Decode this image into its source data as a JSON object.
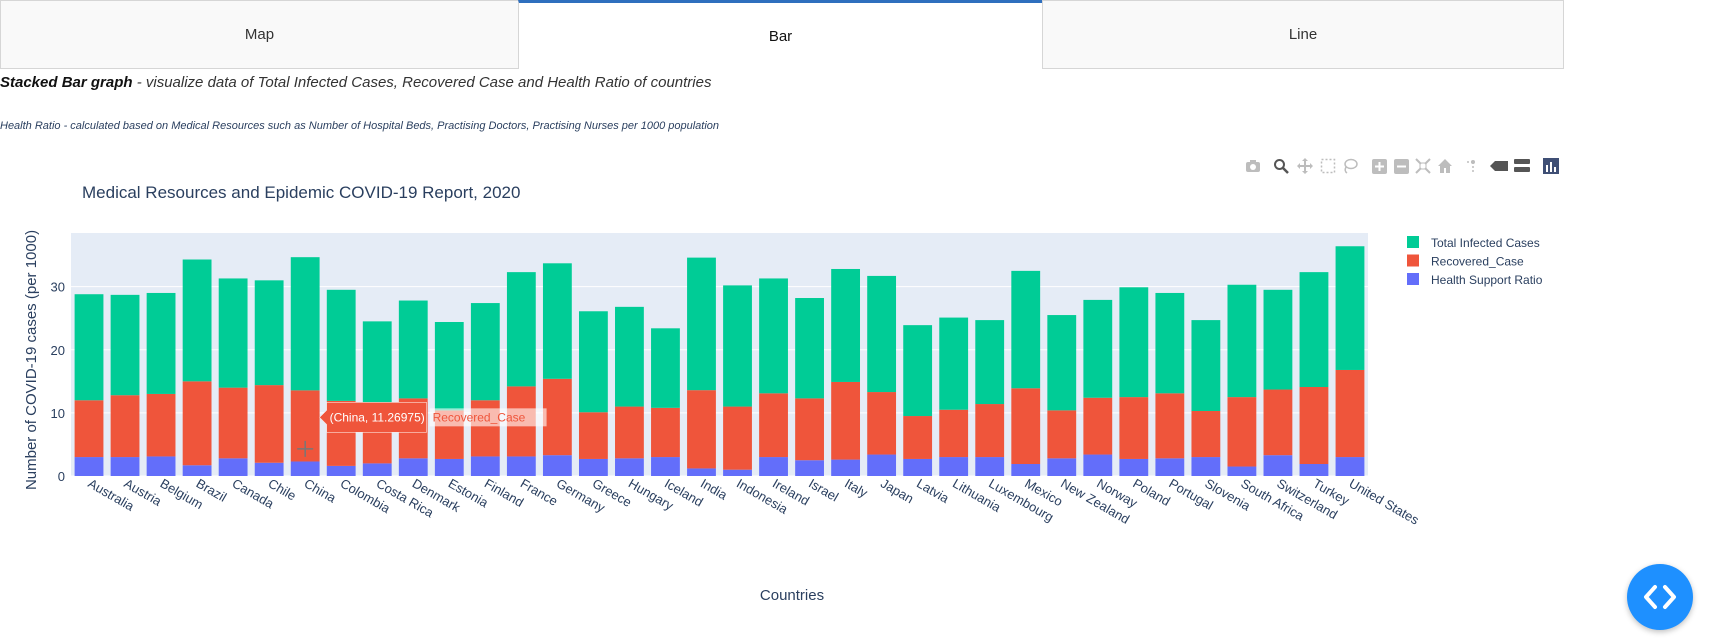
{
  "tabs": [
    {
      "label": "Map",
      "active": false
    },
    {
      "label": "Bar",
      "active": true
    },
    {
      "label": "Line",
      "active": false
    }
  ],
  "description": {
    "bold": "Stacked Bar graph",
    "rest": " - visualize data of Total Infected Cases, Recovered Case and Health Ratio of countries",
    "note": "Health Ratio - calculated based on Medical Resources such as Number of Hospital Beds, Practising Doctors, Practising Nurses per 1000 population"
  },
  "modebar_icons": [
    "camera-icon",
    "zoom-icon",
    "pan-icon",
    "box-select-icon",
    "lasso-select-icon",
    "zoom-in-icon",
    "zoom-out-icon",
    "autoscale-icon",
    "reset-axes-icon",
    "spike-lines-icon",
    "hover-closest-icon",
    "hover-compare-icon",
    "plotly-logo-icon"
  ],
  "colors": {
    "total": "#00cc96",
    "recovered": "#ef553b",
    "health": "#636efa",
    "plot_bg": "#e5ecf6",
    "tab_accent": "#2e6fbe",
    "fab": "#1e90ff"
  },
  "chart_data": {
    "type": "bar",
    "barmode": "stack",
    "title": "Medical Resources and Epidemic COVID-19 Report, 2020",
    "xlabel": "Countries",
    "ylabel": "Number of COVID-19 cases (per 1000)",
    "ylim": [
      0,
      38.5
    ],
    "yticks": [
      0,
      10,
      20,
      30
    ],
    "grid": true,
    "legend_position": "top-right",
    "categories": [
      "Australia",
      "Austria",
      "Belgium",
      "Brazil",
      "Canada",
      "Chile",
      "China",
      "Colombia",
      "Costa Rica",
      "Denmark",
      "Estonia",
      "Finland",
      "France",
      "Germany",
      "Greece",
      "Hungary",
      "Iceland",
      "India",
      "Indonesia",
      "Ireland",
      "Israel",
      "Italy",
      "Japan",
      "Latvia",
      "Lithuania",
      "Luxembourg",
      "Mexico",
      "New Zealand",
      "Norway",
      "Poland",
      "Portugal",
      "Slovenia",
      "South Africa",
      "Switzerland",
      "Turkey",
      "United States"
    ],
    "series": [
      {
        "name": "Health Support Ratio",
        "color": "#636efa",
        "values": [
          3.0,
          3.0,
          3.1,
          1.7,
          2.8,
          2.1,
          2.3,
          1.6,
          2.0,
          2.8,
          2.7,
          3.1,
          3.1,
          3.3,
          2.7,
          2.8,
          3.0,
          1.2,
          1.0,
          3.0,
          2.5,
          2.6,
          3.4,
          2.7,
          3.0,
          3.0,
          1.9,
          2.8,
          3.4,
          2.7,
          2.8,
          3.0,
          1.5,
          3.3,
          1.9,
          3.0
        ]
      },
      {
        "name": "Recovered_Case",
        "color": "#ef553b",
        "values": [
          9.0,
          9.8,
          9.9,
          13.3,
          11.2,
          12.3,
          11.27,
          10.3,
          7.0,
          9.5,
          7.7,
          8.9,
          11.1,
          12.1,
          7.4,
          8.2,
          7.8,
          12.4,
          10.0,
          10.1,
          9.8,
          12.3,
          9.9,
          6.8,
          7.5,
          8.4,
          12.0,
          7.6,
          9.0,
          9.8,
          10.3,
          7.3,
          11.0,
          10.4,
          12.2,
          13.8
        ]
      },
      {
        "name": "Total Infected Cases",
        "color": "#00cc96",
        "values": [
          16.8,
          15.9,
          16.0,
          19.3,
          17.3,
          16.6,
          21.1,
          17.6,
          15.5,
          15.5,
          14.0,
          15.4,
          18.1,
          18.3,
          16.0,
          15.8,
          12.6,
          21.0,
          19.2,
          18.2,
          15.9,
          17.9,
          18.4,
          14.4,
          14.6,
          13.3,
          18.6,
          15.1,
          15.5,
          17.4,
          15.9,
          14.4,
          17.8,
          15.8,
          18.2,
          19.6
        ]
      }
    ],
    "legend_order": [
      "Total Infected Cases",
      "Recovered_Case",
      "Health Support Ratio"
    ],
    "hover_label": {
      "category": "China",
      "text": "(China, 11.26975)",
      "series": "Recovered_Case"
    }
  }
}
